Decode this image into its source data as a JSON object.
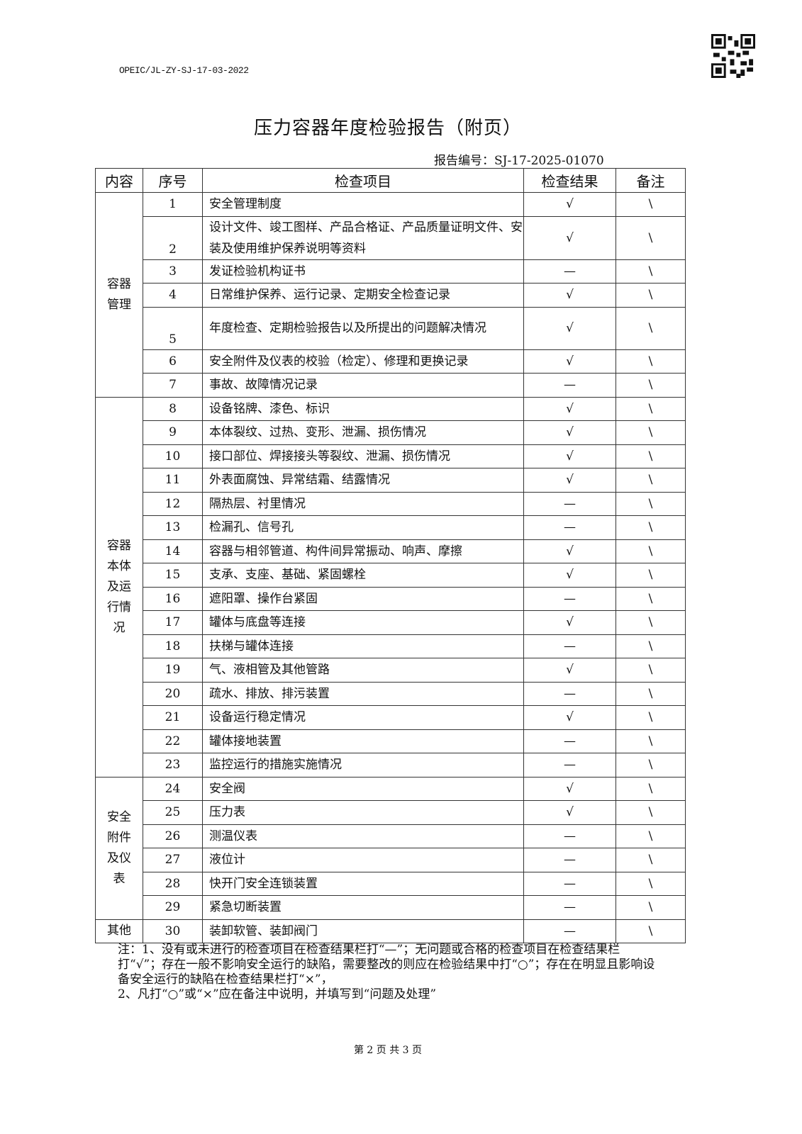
{
  "header": {
    "form_code": "OPEIC/JL-ZY-SJ-17-03-2022",
    "title": "压力容器年度检验报告（附页）",
    "report_no": "报告编号：SJ-17-2025-01070",
    "qr_icon": "qr-code-icon"
  },
  "table": {
    "headers": [
      "内容",
      "序号",
      "检查项目",
      "检查结果",
      "备注"
    ],
    "groups": [
      {
        "label": "容器管理",
        "rows": [
          {
            "no": "1",
            "item": "安全管理制度",
            "result": "√",
            "remark": "\\"
          },
          {
            "no": "2",
            "item": "设计文件、竣工图样、产品合格证、产品质量证明文件、安装及使用维护保养说明等资料",
            "result": "√",
            "remark": "\\"
          },
          {
            "no": "3",
            "item": "发证检验机构证书",
            "result": "—",
            "remark": "\\"
          },
          {
            "no": "4",
            "item": "日常维护保养、运行记录、定期安全检查记录",
            "result": "√",
            "remark": "\\"
          },
          {
            "no": "5",
            "item": "年度检查、定期检验报告以及所提出的问题解决情况",
            "result": "√",
            "remark": "\\"
          },
          {
            "no": "6",
            "item": "安全附件及仪表的校验（检定）、修理和更换记录",
            "result": "√",
            "remark": "\\"
          },
          {
            "no": "7",
            "item": "事故、故障情况记录",
            "result": "—",
            "remark": "\\"
          }
        ]
      },
      {
        "label": "容器本体及运行情况",
        "rows": [
          {
            "no": "8",
            "item": "设备铭牌、漆色、标识",
            "result": "√",
            "remark": "\\"
          },
          {
            "no": "9",
            "item": "本体裂纹、过热、变形、泄漏、损伤情况",
            "result": "√",
            "remark": "\\"
          },
          {
            "no": "10",
            "item": "接口部位、焊接接头等裂纹、泄漏、损伤情况",
            "result": "√",
            "remark": "\\"
          },
          {
            "no": "11",
            "item": "外表面腐蚀、异常结霜、结露情况",
            "result": "√",
            "remark": "\\"
          },
          {
            "no": "12",
            "item": "隔热层、衬里情况",
            "result": "—",
            "remark": "\\"
          },
          {
            "no": "13",
            "item": "检漏孔、信号孔",
            "result": "—",
            "remark": "\\"
          },
          {
            "no": "14",
            "item": "容器与相邻管道、构件间异常振动、响声、摩擦",
            "result": "√",
            "remark": "\\"
          },
          {
            "no": "15",
            "item": "支承、支座、基础、紧固螺栓",
            "result": "√",
            "remark": "\\"
          },
          {
            "no": "16",
            "item": "遮阳罩、操作台紧固",
            "result": "—",
            "remark": "\\"
          },
          {
            "no": "17",
            "item": "罐体与底盘等连接",
            "result": "√",
            "remark": "\\"
          },
          {
            "no": "18",
            "item": "扶梯与罐体连接",
            "result": "—",
            "remark": "\\"
          },
          {
            "no": "19",
            "item": "气、液相管及其他管路",
            "result": "√",
            "remark": "\\"
          },
          {
            "no": "20",
            "item": "疏水、排放、排污装置",
            "result": "—",
            "remark": "\\"
          },
          {
            "no": "21",
            "item": "设备运行稳定情况",
            "result": "√",
            "remark": "\\"
          },
          {
            "no": "22",
            "item": "罐体接地装置",
            "result": "—",
            "remark": "\\"
          },
          {
            "no": "23",
            "item": "监控运行的措施实施情况",
            "result": "—",
            "remark": "\\"
          }
        ]
      },
      {
        "label": "安全附件及仪表",
        "rows": [
          {
            "no": "24",
            "item": "安全阀",
            "result": "√",
            "remark": "\\"
          },
          {
            "no": "25",
            "item": "压力表",
            "result": "√",
            "remark": "\\"
          },
          {
            "no": "26",
            "item": "测温仪表",
            "result": "—",
            "remark": "\\"
          },
          {
            "no": "27",
            "item": "液位计",
            "result": "—",
            "remark": "\\"
          },
          {
            "no": "28",
            "item": "快开门安全连锁装置",
            "result": "—",
            "remark": "\\"
          },
          {
            "no": "29",
            "item": "紧急切断装置",
            "result": "—",
            "remark": "\\"
          }
        ]
      },
      {
        "label": "其他",
        "rows": [
          {
            "no": "30",
            "item": "装卸软管、装卸阀门",
            "result": "—",
            "remark": "\\"
          }
        ]
      }
    ]
  },
  "notes": [
    "注：1、没有或未进行的检查项目在检查结果栏打“—”；无问题或合格的检查项目在检查结果栏打“√”；存在一般不影响安全运行的缺陷，需要整改的则应在检验结果中打“○”；存在在明显且影响设备安全运行的缺陷在检查结果栏打“×”，",
    "2、凡打“○”或“×”应在备注中说明，并填写到“问题及处理”"
  ],
  "footer": {
    "page": "第 2 页 共 3 页"
  }
}
